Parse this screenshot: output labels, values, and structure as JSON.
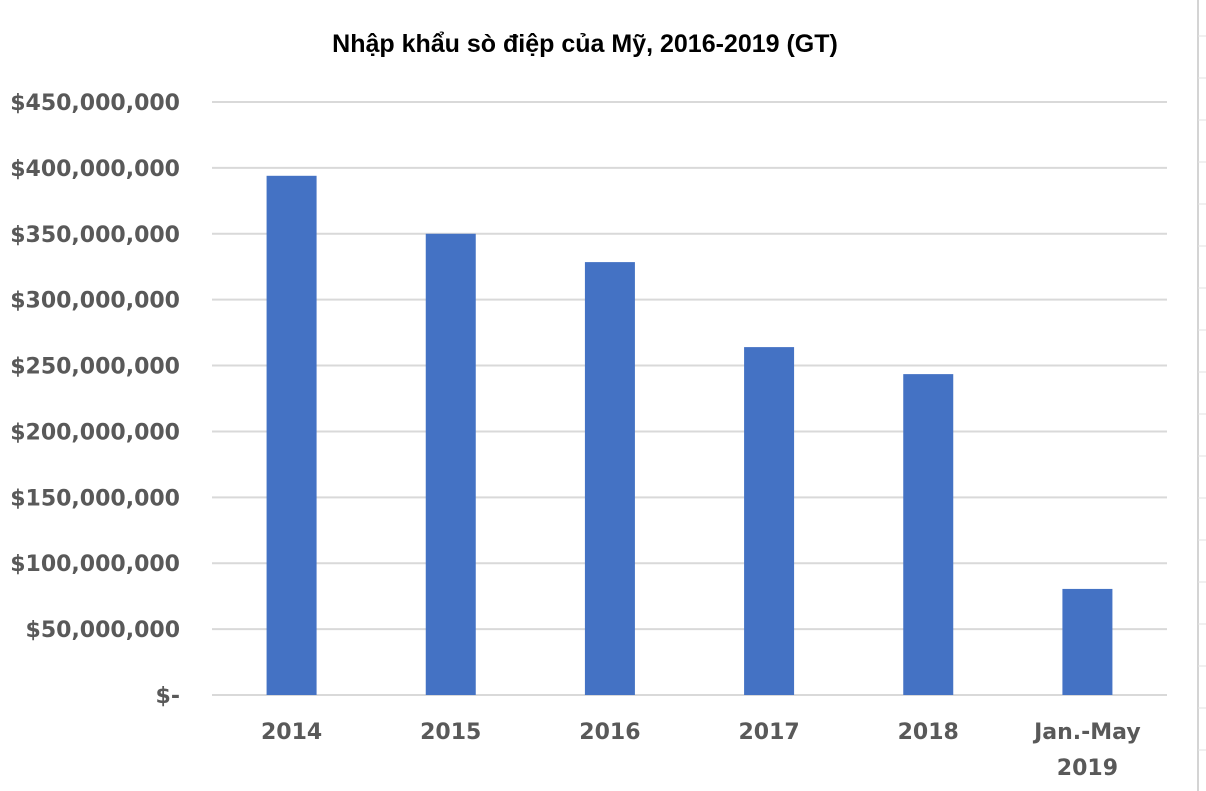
{
  "chart_data": {
    "type": "bar",
    "title": "Nhập khẩu sò điệp của Mỹ, 2016-2019 (GT)",
    "categories": [
      "2014",
      "2015",
      "2016",
      "2017",
      "2018",
      "Jan.-May 2019"
    ],
    "category_lines": [
      [
        "2014"
      ],
      [
        "2015"
      ],
      [
        "2016"
      ],
      [
        "2017"
      ],
      [
        "2018"
      ],
      [
        "Jan.-May",
        "2019"
      ]
    ],
    "values": [
      394000000,
      350000000,
      328500000,
      264000000,
      243500000,
      80500000
    ],
    "xlabel": "",
    "ylabel": "",
    "ylim": [
      0,
      450000000
    ],
    "yticks": [
      0,
      50000000,
      100000000,
      150000000,
      200000000,
      250000000,
      300000000,
      350000000,
      400000000,
      450000000
    ],
    "ytick_labels": [
      "$-",
      "$50,000,000",
      "$100,000,000",
      "$150,000,000",
      "$200,000,000",
      "$250,000,000",
      "$300,000,000",
      "$350,000,000",
      "$400,000,000",
      "$450,000,000"
    ],
    "grid": true,
    "legend": "none",
    "bar_color": "#4472C4",
    "grid_color": "#D9D9D9",
    "text_color": "#595959"
  }
}
